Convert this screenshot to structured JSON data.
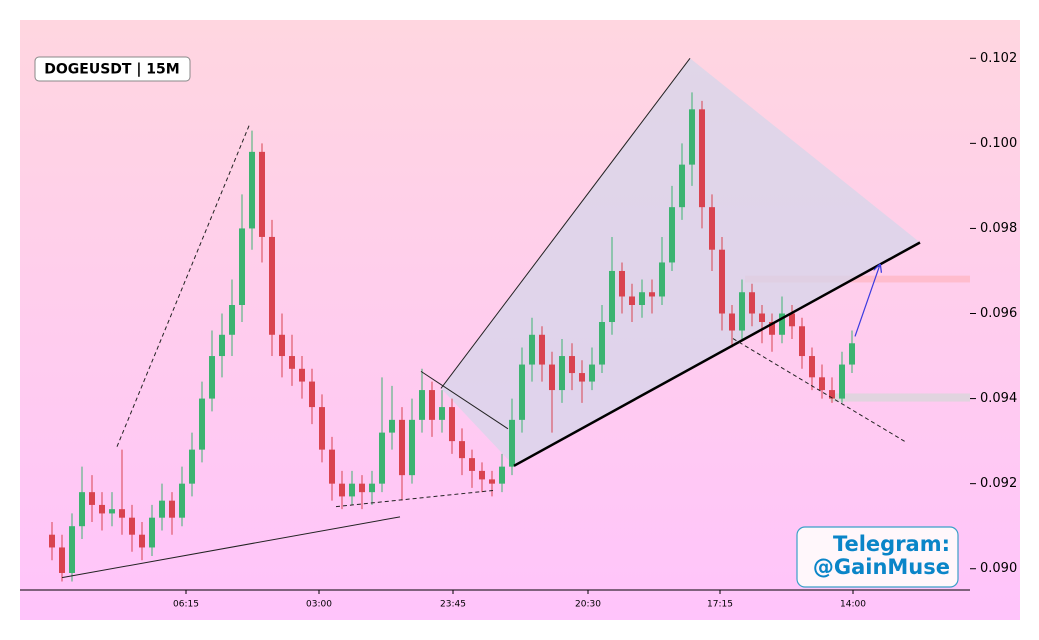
{
  "chart_data": {
    "type": "candlestick",
    "title": "DOGEUSDT | 15M",
    "watermark": [
      "Telegram:",
      "@GainMuse"
    ],
    "up_color": "#3cb371",
    "down_color": "#d9434f",
    "ylim": [
      0.0895,
      0.1029
    ],
    "yticks": [
      {
        "value": 0.09,
        "label": "0.090"
      },
      0.092,
      0.094,
      0.096,
      0.098,
      {
        "value": 0.1,
        "label": "0.100"
      },
      0.102
    ],
    "xlim": [
      -3.2,
      91.8
    ],
    "xticks": [
      {
        "value": 13.4,
        "label": "06:15"
      },
      {
        "value": 26.7,
        "label": "03:00"
      },
      {
        "value": 40.1,
        "label": "23:45"
      },
      {
        "value": 53.6,
        "label": "20:30"
      },
      {
        "value": 66.8,
        "label": "17:15"
      },
      {
        "value": 80.1,
        "label": "14:00"
      }
    ],
    "candles": [
      [
        0.0908,
        0.0911,
        0.0902,
        0.0905
      ],
      [
        0.0905,
        0.0908,
        0.0897,
        0.0899
      ],
      [
        0.0899,
        0.0913,
        0.0897,
        0.091
      ],
      [
        0.091,
        0.0924,
        0.0907,
        0.0918
      ],
      [
        0.0918,
        0.0922,
        0.0911,
        0.0915
      ],
      [
        0.0915,
        0.0918,
        0.0909,
        0.0913
      ],
      [
        0.0913,
        0.0918,
        0.091,
        0.0914
      ],
      [
        0.0914,
        0.0928,
        0.0908,
        0.0912
      ],
      [
        0.0912,
        0.0915,
        0.0904,
        0.0908
      ],
      [
        0.0908,
        0.0911,
        0.0902,
        0.0905
      ],
      [
        0.0905,
        0.0915,
        0.0903,
        0.0912
      ],
      [
        0.0912,
        0.092,
        0.0909,
        0.0916
      ],
      [
        0.0916,
        0.0918,
        0.0908,
        0.0912
      ],
      [
        0.0912,
        0.0924,
        0.091,
        0.092
      ],
      [
        0.092,
        0.0932,
        0.0917,
        0.0928
      ],
      [
        0.0928,
        0.0944,
        0.0925,
        0.094
      ],
      [
        0.094,
        0.0956,
        0.0937,
        0.095
      ],
      [
        0.095,
        0.096,
        0.0945,
        0.0955
      ],
      [
        0.0955,
        0.0968,
        0.095,
        0.0962
      ],
      [
        0.0962,
        0.0988,
        0.0958,
        0.098
      ],
      [
        0.098,
        0.1003,
        0.0975,
        0.0998
      ],
      [
        0.0998,
        0.1,
        0.0972,
        0.0978
      ],
      [
        0.0978,
        0.0982,
        0.095,
        0.0955
      ],
      [
        0.0955,
        0.096,
        0.0945,
        0.095
      ],
      [
        0.095,
        0.0955,
        0.0943,
        0.0947
      ],
      [
        0.0947,
        0.095,
        0.094,
        0.0944
      ],
      [
        0.0944,
        0.0947,
        0.0934,
        0.0938
      ],
      [
        0.0938,
        0.0941,
        0.0925,
        0.0928
      ],
      [
        0.0928,
        0.0931,
        0.0916,
        0.092
      ],
      [
        0.092,
        0.0923,
        0.0914,
        0.0917
      ],
      [
        0.0917,
        0.0923,
        0.0915,
        0.092
      ],
      [
        0.092,
        0.0922,
        0.0914,
        0.0918
      ],
      [
        0.0918,
        0.0923,
        0.0915,
        0.092
      ],
      [
        0.092,
        0.0945,
        0.0918,
        0.0932
      ],
      [
        0.0932,
        0.0943,
        0.0928,
        0.0935
      ],
      [
        0.0935,
        0.0938,
        0.0916,
        0.0922
      ],
      [
        0.0922,
        0.094,
        0.092,
        0.0935
      ],
      [
        0.0935,
        0.0947,
        0.0932,
        0.0942
      ],
      [
        0.0942,
        0.0944,
        0.0931,
        0.0935
      ],
      [
        0.0935,
        0.0942,
        0.0932,
        0.0938
      ],
      [
        0.0938,
        0.094,
        0.0927,
        0.093
      ],
      [
        0.093,
        0.0933,
        0.0922,
        0.0926
      ],
      [
        0.0926,
        0.0928,
        0.0919,
        0.0923
      ],
      [
        0.0923,
        0.0925,
        0.0918,
        0.0921
      ],
      [
        0.0921,
        0.0923,
        0.0917,
        0.092
      ],
      [
        0.092,
        0.0927,
        0.0918,
        0.0924
      ],
      [
        0.0924,
        0.094,
        0.0922,
        0.0935
      ],
      [
        0.0935,
        0.0952,
        0.0932,
        0.0948
      ],
      [
        0.0948,
        0.0959,
        0.0944,
        0.0955
      ],
      [
        0.0955,
        0.0957,
        0.0944,
        0.0948
      ],
      [
        0.0948,
        0.0951,
        0.0932,
        0.0942
      ],
      [
        0.0942,
        0.0954,
        0.0939,
        0.095
      ],
      [
        0.095,
        0.0953,
        0.0942,
        0.0946
      ],
      [
        0.0946,
        0.0949,
        0.0939,
        0.0944
      ],
      [
        0.0944,
        0.0952,
        0.0942,
        0.0948
      ],
      [
        0.0948,
        0.0962,
        0.0946,
        0.0958
      ],
      [
        0.0958,
        0.0978,
        0.0955,
        0.097
      ],
      [
        0.097,
        0.0972,
        0.096,
        0.0964
      ],
      [
        0.0964,
        0.0967,
        0.0958,
        0.0962
      ],
      [
        0.0962,
        0.0968,
        0.0959,
        0.0965
      ],
      [
        0.0965,
        0.0968,
        0.096,
        0.0964
      ],
      [
        0.0964,
        0.0978,
        0.0962,
        0.0972
      ],
      [
        0.0972,
        0.099,
        0.097,
        0.0985
      ],
      [
        0.0985,
        0.1,
        0.0982,
        0.0995
      ],
      [
        0.0995,
        0.1012,
        0.099,
        0.1008
      ],
      [
        0.1008,
        0.101,
        0.098,
        0.0985
      ],
      [
        0.0985,
        0.0988,
        0.097,
        0.0975
      ],
      [
        0.0975,
        0.0978,
        0.0956,
        0.096
      ],
      [
        0.096,
        0.0962,
        0.0952,
        0.0956
      ],
      [
        0.0956,
        0.0968,
        0.0954,
        0.0965
      ],
      [
        0.0965,
        0.0967,
        0.0957,
        0.096
      ],
      [
        0.096,
        0.0962,
        0.0953,
        0.0958
      ],
      [
        0.0958,
        0.096,
        0.0951,
        0.0955
      ],
      [
        0.0955,
        0.0964,
        0.0953,
        0.096
      ],
      [
        0.096,
        0.0962,
        0.0954,
        0.0957
      ],
      [
        0.0957,
        0.0959,
        0.0947,
        0.095
      ],
      [
        0.095,
        0.0952,
        0.0942,
        0.0945
      ],
      [
        0.0945,
        0.0948,
        0.094,
        0.0942
      ],
      [
        0.0942,
        0.0945,
        0.0939,
        0.094
      ],
      [
        0.094,
        0.0951,
        0.0939,
        0.0948
      ],
      [
        0.0948,
        0.0956,
        0.0946,
        0.0953
      ]
    ],
    "zones": [
      {
        "x": [
          69.3,
          91.8
        ],
        "y": [
          0.09673,
          0.09689
        ],
        "color": "#ffb8c8"
      },
      {
        "x": [
          77.8,
          91.8
        ],
        "y": [
          0.09393,
          0.09412
        ],
        "color": "#dcd6dc"
      }
    ],
    "polygons": [
      {
        "x": [
          38.9,
          63.8,
          86.8,
          46.2
        ],
        "y": [
          0.09424,
          0.102,
          0.09767,
          0.09242
        ],
        "color": "#d6d6ea"
      }
    ],
    "lines": [
      {
        "x": [
          1,
          34.8
        ],
        "y": [
          0.08979,
          0.09122
        ],
        "style": "solid",
        "width": 1,
        "color": "#222222"
      },
      {
        "x": [
          6.5,
          19.8
        ],
        "y": [
          0.09287,
          0.10047
        ],
        "style": "dashed",
        "width": 1,
        "color": "#222222"
      },
      {
        "x": [
          28.4,
          44.1
        ],
        "y": [
          0.09146,
          0.09184
        ],
        "style": "dashed",
        "width": 1,
        "color": "#222222"
      },
      {
        "x": [
          36.9,
          45.6
        ],
        "y": [
          0.09464,
          0.09329
        ],
        "style": "solid",
        "width": 1,
        "color": "#222222"
      },
      {
        "x": [
          38.9,
          63.8
        ],
        "y": [
          0.09424,
          0.102
        ],
        "style": "solid",
        "width": 1,
        "color": "#222222"
      },
      {
        "x": [
          46.2,
          86.8
        ],
        "y": [
          0.09242,
          0.09767
        ],
        "style": "solid",
        "width": 2.5,
        "color": "#000000"
      },
      {
        "x": [
          68.1,
          85.3
        ],
        "y": [
          0.09541,
          0.09299
        ],
        "style": "dashed",
        "width": 1,
        "color": "#222222"
      }
    ],
    "arrows": [
      {
        "x": [
          80.3,
          82.8
        ],
        "y": [
          0.09546,
          0.09715
        ],
        "color": "#3a3ae0"
      }
    ]
  }
}
